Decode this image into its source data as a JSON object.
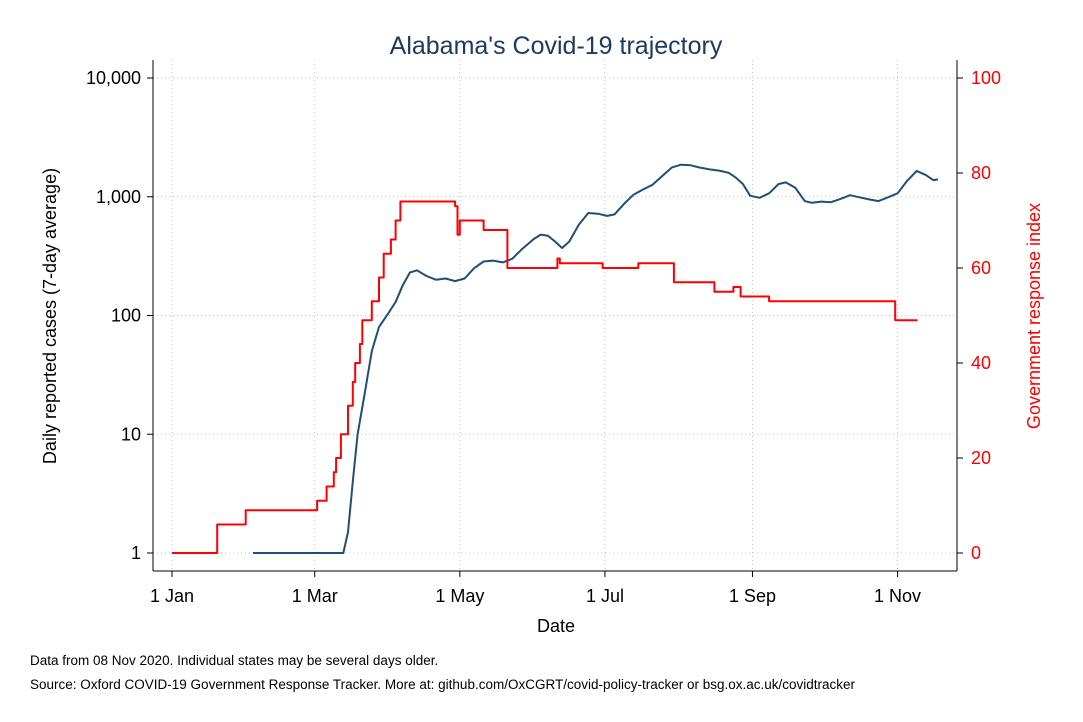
{
  "notes": {
    "line1": "Data from 08 Nov 2020. Individual states may be several days older.",
    "line2": "Source: Oxford COVID-19 Government Response Tracker. More at: github.com/OxCGRT/covid-policy-tracker or bsg.ox.ac.uk/covidtracker"
  },
  "chart_data": {
    "type": "line",
    "title": "Alabama's Covid-19 trajectory",
    "xlabel": "Date",
    "ylabel_left": "Daily reported cases (7-day average)",
    "ylabel_right": "Government response index",
    "x_ticks": [
      "1 Jan",
      "1 Mar",
      "1 May",
      "1 Jul",
      "1 Sep",
      "1 Nov"
    ],
    "x_tick_dates": [
      "2020-01-01",
      "2020-03-01",
      "2020-05-01",
      "2020-07-01",
      "2020-09-01",
      "2020-11-01"
    ],
    "xlim": [
      "2020-01-01",
      "2020-11-08"
    ],
    "y_left_scale": "log",
    "y_left_ticks": [
      1,
      10,
      100,
      1000,
      10000
    ],
    "y_left_tick_labels": [
      "1",
      "10",
      "100",
      "1,000",
      "10,000"
    ],
    "ylim_left": [
      1,
      10000
    ],
    "y_right_ticks": [
      0,
      20,
      40,
      60,
      80,
      100
    ],
    "ylim_right": [
      0,
      100
    ],
    "grid": true,
    "colors": {
      "cases": "#1f4e79",
      "index": "#ff0000",
      "title": "#1f3864",
      "right_axis": "#ff0000"
    },
    "series": [
      {
        "axis": "left",
        "color": "#1f4e79",
        "points": [
          [
            "2020-02-04",
            1
          ],
          [
            "2020-03-13",
            1
          ],
          [
            "2020-03-15",
            1.5
          ],
          [
            "2020-03-17",
            4
          ],
          [
            "2020-03-19",
            10
          ],
          [
            "2020-03-22",
            22
          ],
          [
            "2020-03-25",
            50
          ],
          [
            "2020-03-28",
            80
          ],
          [
            "2020-04-01",
            105
          ],
          [
            "2020-04-04",
            130
          ],
          [
            "2020-04-07",
            180
          ],
          [
            "2020-04-10",
            230
          ],
          [
            "2020-04-13",
            240
          ],
          [
            "2020-04-17",
            215
          ],
          [
            "2020-04-21",
            200
          ],
          [
            "2020-04-25",
            205
          ],
          [
            "2020-04-29",
            195
          ],
          [
            "2020-05-03",
            205
          ],
          [
            "2020-05-07",
            250
          ],
          [
            "2020-05-11",
            285
          ],
          [
            "2020-05-15",
            290
          ],
          [
            "2020-05-19",
            280
          ],
          [
            "2020-05-23",
            300
          ],
          [
            "2020-05-27",
            360
          ],
          [
            "2020-06-01",
            440
          ],
          [
            "2020-06-04",
            480
          ],
          [
            "2020-06-07",
            470
          ],
          [
            "2020-06-10",
            420
          ],
          [
            "2020-06-13",
            370
          ],
          [
            "2020-06-16",
            420
          ],
          [
            "2020-06-20",
            580
          ],
          [
            "2020-06-24",
            730
          ],
          [
            "2020-06-28",
            720
          ],
          [
            "2020-07-02",
            690
          ],
          [
            "2020-07-05",
            710
          ],
          [
            "2020-07-09",
            870
          ],
          [
            "2020-07-13",
            1040
          ],
          [
            "2020-07-17",
            1150
          ],
          [
            "2020-07-21",
            1260
          ],
          [
            "2020-07-25",
            1490
          ],
          [
            "2020-07-29",
            1760
          ],
          [
            "2020-08-02",
            1860
          ],
          [
            "2020-08-06",
            1840
          ],
          [
            "2020-08-10",
            1760
          ],
          [
            "2020-08-14",
            1700
          ],
          [
            "2020-08-18",
            1660
          ],
          [
            "2020-08-22",
            1590
          ],
          [
            "2020-08-25",
            1450
          ],
          [
            "2020-08-28",
            1280
          ],
          [
            "2020-08-31",
            1020
          ],
          [
            "2020-09-04",
            980
          ],
          [
            "2020-09-08",
            1070
          ],
          [
            "2020-09-12",
            1280
          ],
          [
            "2020-09-15",
            1320
          ],
          [
            "2020-09-19",
            1190
          ],
          [
            "2020-09-23",
            920
          ],
          [
            "2020-09-26",
            890
          ],
          [
            "2020-09-30",
            910
          ],
          [
            "2020-10-04",
            900
          ],
          [
            "2020-10-08",
            960
          ],
          [
            "2020-10-12",
            1030
          ],
          [
            "2020-10-16",
            990
          ],
          [
            "2020-10-20",
            950
          ],
          [
            "2020-10-24",
            920
          ],
          [
            "2020-10-28",
            990
          ],
          [
            "2020-11-01",
            1070
          ],
          [
            "2020-11-05",
            1360
          ],
          [
            "2020-11-09",
            1650
          ],
          [
            "2020-11-13",
            1520
          ],
          [
            "2020-11-16",
            1380
          ],
          [
            "2020-11-18",
            1400
          ]
        ]
      },
      {
        "axis": "right",
        "color": "#ff0000",
        "step": true,
        "points": [
          [
            "2020-01-01",
            0
          ],
          [
            "2020-01-20",
            6
          ],
          [
            "2020-02-01",
            9
          ],
          [
            "2020-03-02",
            11
          ],
          [
            "2020-03-06",
            14
          ],
          [
            "2020-03-09",
            17
          ],
          [
            "2020-03-10",
            20
          ],
          [
            "2020-03-12",
            25
          ],
          [
            "2020-03-15",
            31
          ],
          [
            "2020-03-17",
            36
          ],
          [
            "2020-03-18",
            40
          ],
          [
            "2020-03-20",
            44
          ],
          [
            "2020-03-21",
            49
          ],
          [
            "2020-03-25",
            53
          ],
          [
            "2020-03-28",
            58
          ],
          [
            "2020-03-30",
            63
          ],
          [
            "2020-04-02",
            66
          ],
          [
            "2020-04-04",
            70
          ],
          [
            "2020-04-06",
            74
          ],
          [
            "2020-04-29",
            73
          ],
          [
            "2020-04-30",
            67
          ],
          [
            "2020-05-01",
            70
          ],
          [
            "2020-05-11",
            68
          ],
          [
            "2020-05-21",
            60
          ],
          [
            "2020-06-11",
            62
          ],
          [
            "2020-06-12",
            61
          ],
          [
            "2020-06-30",
            60
          ],
          [
            "2020-07-15",
            61
          ],
          [
            "2020-07-30",
            57
          ],
          [
            "2020-08-16",
            55
          ],
          [
            "2020-08-24",
            56
          ],
          [
            "2020-08-27",
            54
          ],
          [
            "2020-09-08",
            53
          ],
          [
            "2020-10-31",
            49
          ],
          [
            "2020-11-06",
            49
          ]
        ]
      }
    ]
  }
}
